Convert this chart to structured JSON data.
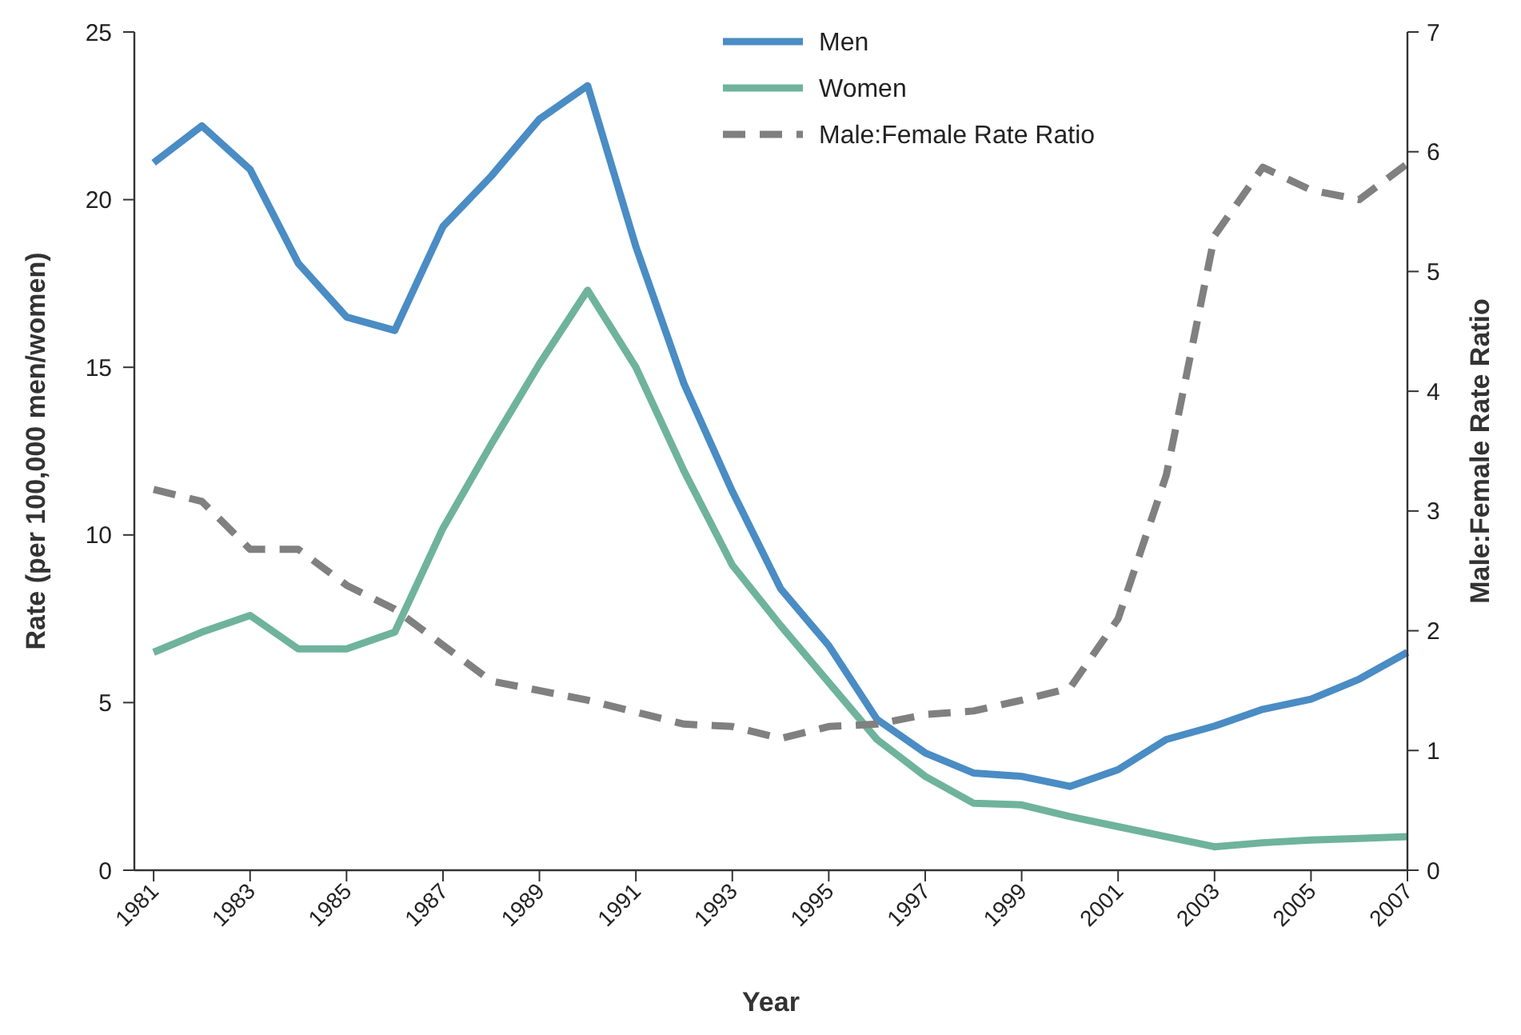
{
  "chart_data": {
    "type": "line",
    "xlabel": "Year",
    "ylabel": "Rate (per 100,000 men/women)",
    "y2label": "Male:Female Rate Ratio",
    "x": [
      1981,
      1982,
      1983,
      1984,
      1985,
      1986,
      1987,
      1988,
      1989,
      1990,
      1991,
      1992,
      1993,
      1994,
      1995,
      1996,
      1997,
      1998,
      1999,
      2000,
      2001,
      2002,
      2003,
      2004,
      2005,
      2006,
      2007
    ],
    "series": [
      {
        "name": "Men",
        "color": "#4a8cc4",
        "line_style": "solid",
        "values": [
          21.1,
          22.2,
          20.9,
          18.1,
          16.5,
          16.1,
          19.2,
          20.7,
          22.4,
          23.4,
          18.6,
          14.5,
          11.3,
          8.4,
          6.7,
          4.5,
          3.5,
          2.9,
          2.8,
          2.5,
          3.0,
          3.9,
          4.3,
          4.8,
          5.1,
          5.7,
          6.5
        ]
      },
      {
        "name": "Women",
        "color": "#6fb39c",
        "line_style": "solid",
        "values": [
          6.5,
          7.1,
          7.6,
          6.6,
          6.6,
          7.1,
          10.2,
          12.7,
          15.1,
          17.3,
          15.0,
          11.9,
          9.1,
          7.3,
          5.6,
          3.9,
          2.8,
          2.0,
          1.95,
          1.6,
          1.3,
          1.0,
          0.7,
          0.82,
          0.9,
          0.95,
          1.0
        ]
      },
      {
        "name": "Male:Female Rate Ratio",
        "color": "#808080",
        "line_style": "dashed",
        "axis": "y2",
        "values": [
          3.18,
          3.08,
          2.68,
          2.68,
          2.38,
          2.18,
          1.88,
          1.58,
          1.5,
          1.42,
          1.32,
          1.22,
          1.2,
          1.1,
          1.2,
          1.22,
          1.3,
          1.33,
          1.42,
          1.52,
          2.1,
          3.3,
          5.3,
          5.87,
          5.68,
          5.6,
          5.9
        ]
      }
    ],
    "xlim": [
      1980.6,
      2007
    ],
    "xticks": [
      1981,
      1983,
      1985,
      1987,
      1989,
      1991,
      1993,
      1995,
      1997,
      1999,
      2001,
      2003,
      2005,
      2007
    ],
    "ylim": [
      0,
      25
    ],
    "yticks": [
      0,
      5,
      10,
      15,
      20,
      25
    ],
    "y2lim": [
      0,
      7
    ],
    "y2ticks": [
      0,
      1,
      2,
      3,
      4,
      5,
      6,
      7
    ],
    "grid": false,
    "legend": "top",
    "marker": "none"
  }
}
